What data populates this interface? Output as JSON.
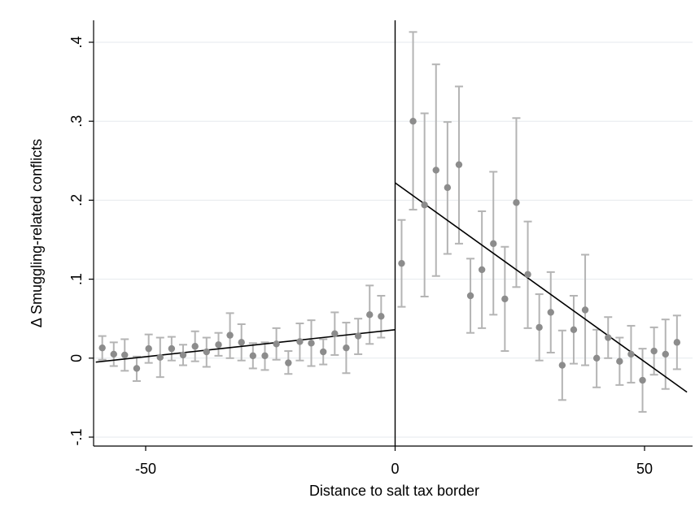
{
  "chart_data": {
    "type": "scatter",
    "title": "",
    "xlabel": "Distance to salt tax border",
    "ylabel": "Δ Smuggling-related conflicts",
    "xlim": [
      -60,
      60
    ],
    "ylim": [
      -0.1,
      0.42
    ],
    "x_ticks": [
      -50,
      0,
      50
    ],
    "x_tick_labels": [
      "-50",
      "0",
      "50"
    ],
    "y_ticks": [
      -0.1,
      0,
      0.1,
      0.2,
      0.3,
      0.4
    ],
    "y_tick_labels": [
      "-.1",
      "0",
      ".1",
      ".2",
      ".3",
      ".4"
    ],
    "grid": true,
    "cutoff_x": 0,
    "colors": {
      "points": "#8c8c8c",
      "error_bars": "#b4b4b4",
      "fit_line": "#000000",
      "grid": "#e6eaed",
      "axis": "#000000"
    },
    "points": [
      {
        "x": -58.7,
        "y": 0.013,
        "lo": -0.002,
        "hi": 0.028
      },
      {
        "x": -56.4,
        "y": 0.005,
        "lo": -0.01,
        "hi": 0.02
      },
      {
        "x": -54.2,
        "y": 0.004,
        "lo": -0.016,
        "hi": 0.024
      },
      {
        "x": -51.8,
        "y": -0.013,
        "lo": -0.029,
        "hi": 0.002
      },
      {
        "x": -49.4,
        "y": 0.012,
        "lo": -0.006,
        "hi": 0.03
      },
      {
        "x": -47.1,
        "y": 0.001,
        "lo": -0.024,
        "hi": 0.026
      },
      {
        "x": -44.8,
        "y": 0.012,
        "lo": -0.003,
        "hi": 0.027
      },
      {
        "x": -42.5,
        "y": 0.004,
        "lo": -0.009,
        "hi": 0.017
      },
      {
        "x": -40.1,
        "y": 0.015,
        "lo": -0.004,
        "hi": 0.034
      },
      {
        "x": -37.8,
        "y": 0.008,
        "lo": -0.011,
        "hi": 0.026
      },
      {
        "x": -35.4,
        "y": 0.017,
        "lo": 0.003,
        "hi": 0.032
      },
      {
        "x": -33.1,
        "y": 0.029,
        "lo": 0.0,
        "hi": 0.057
      },
      {
        "x": -30.8,
        "y": 0.02,
        "lo": -0.003,
        "hi": 0.043
      },
      {
        "x": -28.5,
        "y": 0.003,
        "lo": -0.013,
        "hi": 0.019
      },
      {
        "x": -26.1,
        "y": 0.003,
        "lo": -0.015,
        "hi": 0.02
      },
      {
        "x": -23.8,
        "y": 0.018,
        "lo": -0.002,
        "hi": 0.038
      },
      {
        "x": -21.4,
        "y": -0.006,
        "lo": -0.02,
        "hi": 0.009
      },
      {
        "x": -19.1,
        "y": 0.021,
        "lo": -0.003,
        "hi": 0.044
      },
      {
        "x": -16.8,
        "y": 0.019,
        "lo": -0.01,
        "hi": 0.048
      },
      {
        "x": -14.4,
        "y": 0.008,
        "lo": -0.008,
        "hi": 0.024
      },
      {
        "x": -12.1,
        "y": 0.031,
        "lo": 0.004,
        "hi": 0.058
      },
      {
        "x": -9.8,
        "y": 0.013,
        "lo": -0.019,
        "hi": 0.045
      },
      {
        "x": -7.4,
        "y": 0.028,
        "lo": 0.005,
        "hi": 0.05
      },
      {
        "x": -5.1,
        "y": 0.055,
        "lo": 0.018,
        "hi": 0.092
      },
      {
        "x": -2.8,
        "y": 0.053,
        "lo": 0.026,
        "hi": 0.079
      },
      {
        "x": 1.3,
        "y": 0.12,
        "lo": 0.065,
        "hi": 0.175
      },
      {
        "x": 3.6,
        "y": 0.3,
        "lo": 0.188,
        "hi": 0.413
      },
      {
        "x": 5.9,
        "y": 0.194,
        "lo": 0.078,
        "hi": 0.31
      },
      {
        "x": 8.2,
        "y": 0.238,
        "lo": 0.104,
        "hi": 0.372
      },
      {
        "x": 10.5,
        "y": 0.216,
        "lo": 0.132,
        "hi": 0.299
      },
      {
        "x": 12.8,
        "y": 0.245,
        "lo": 0.145,
        "hi": 0.344
      },
      {
        "x": 15.1,
        "y": 0.079,
        "lo": 0.032,
        "hi": 0.126
      },
      {
        "x": 17.4,
        "y": 0.112,
        "lo": 0.038,
        "hi": 0.186
      },
      {
        "x": 19.7,
        "y": 0.145,
        "lo": 0.055,
        "hi": 0.236
      },
      {
        "x": 22.0,
        "y": 0.075,
        "lo": 0.009,
        "hi": 0.141
      },
      {
        "x": 24.3,
        "y": 0.197,
        "lo": 0.09,
        "hi": 0.304
      },
      {
        "x": 26.6,
        "y": 0.106,
        "lo": 0.038,
        "hi": 0.173
      },
      {
        "x": 28.9,
        "y": 0.039,
        "lo": -0.003,
        "hi": 0.081
      },
      {
        "x": 31.2,
        "y": 0.058,
        "lo": 0.007,
        "hi": 0.109
      },
      {
        "x": 33.5,
        "y": -0.009,
        "lo": -0.053,
        "hi": 0.035
      },
      {
        "x": 35.8,
        "y": 0.036,
        "lo": -0.007,
        "hi": 0.079
      },
      {
        "x": 38.1,
        "y": 0.061,
        "lo": -0.009,
        "hi": 0.131
      },
      {
        "x": 40.4,
        "y": 0.0,
        "lo": -0.037,
        "hi": 0.036
      },
      {
        "x": 42.7,
        "y": 0.026,
        "lo": 0.0,
        "hi": 0.052
      },
      {
        "x": 45.0,
        "y": -0.004,
        "lo": -0.034,
        "hi": 0.026
      },
      {
        "x": 47.3,
        "y": 0.005,
        "lo": -0.031,
        "hi": 0.041
      },
      {
        "x": 49.6,
        "y": -0.028,
        "lo": -0.068,
        "hi": 0.012
      },
      {
        "x": 51.9,
        "y": 0.009,
        "lo": -0.021,
        "hi": 0.039
      },
      {
        "x": 54.2,
        "y": 0.005,
        "lo": -0.039,
        "hi": 0.049
      },
      {
        "x": 56.5,
        "y": 0.02,
        "lo": -0.014,
        "hi": 0.054
      }
    ],
    "fit_lines": [
      {
        "x": [
          -60,
          0
        ],
        "y": [
          -0.005,
          0.036
        ]
      },
      {
        "x": [
          0,
          58.5
        ],
        "y": [
          0.222,
          -0.043
        ]
      }
    ]
  }
}
